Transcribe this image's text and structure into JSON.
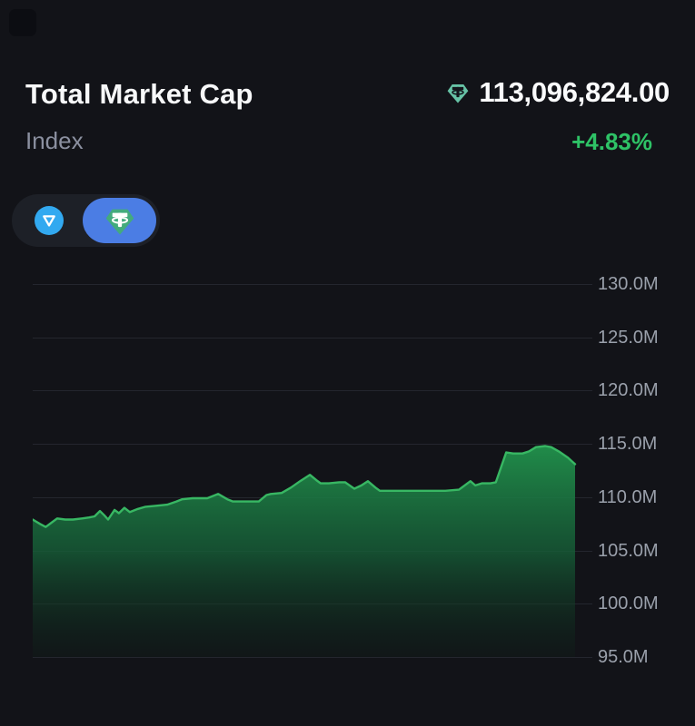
{
  "header": {
    "title": "Total Market Cap",
    "subtitle": "Index",
    "value": "113,096,824.00",
    "change": "+4.83%",
    "currency_icon": "tether-icon"
  },
  "toggle": {
    "options": [
      {
        "id": "ton",
        "icon": "ton-icon",
        "selected": false
      },
      {
        "id": "usdt",
        "icon": "tether-icon",
        "selected": true
      }
    ]
  },
  "colors": {
    "background": "#121318",
    "panel": "#1d2027",
    "selected_pill": "#4b7de4",
    "ton_blue": "#32a9f0",
    "tether_green": "#43ab7d",
    "tether_mint": "#67c3a6",
    "positive_green": "#2ec266",
    "line_green": "#38b763",
    "grid_line": "#24262e",
    "axis_label": "#9aa0ab",
    "title_text": "#f7f8f9",
    "muted_text": "#8b90a0"
  },
  "chart_data": {
    "type": "area",
    "title": "Total Market Cap Index",
    "unit": "M",
    "grid": true,
    "legend_position": "none",
    "ylim": [
      95,
      130
    ],
    "ytick_step": 5,
    "yticks": [
      "130.0M",
      "125.0M",
      "120.0M",
      "115.0M",
      "110.0M",
      "105.0M",
      "100.0M",
      "95.0M"
    ],
    "current_value_millions": 113.1,
    "series": [
      {
        "name": "Total Market Cap",
        "color": "#38b763",
        "points": [
          [
            0,
            107.9
          ],
          [
            1.3,
            107.5
          ],
          [
            2.4,
            107.2
          ],
          [
            3.7,
            107.7
          ],
          [
            4.5,
            108.0
          ],
          [
            6.0,
            107.9
          ],
          [
            7.4,
            107.9
          ],
          [
            9.1,
            108.0
          ],
          [
            10.4,
            108.1
          ],
          [
            11.4,
            108.2
          ],
          [
            12.4,
            108.7
          ],
          [
            13.2,
            108.3
          ],
          [
            13.9,
            107.9
          ],
          [
            15.1,
            108.8
          ],
          [
            15.9,
            108.5
          ],
          [
            16.9,
            109.0
          ],
          [
            17.9,
            108.6
          ],
          [
            19.4,
            108.9
          ],
          [
            20.8,
            109.1
          ],
          [
            22.8,
            109.2
          ],
          [
            24.8,
            109.3
          ],
          [
            26.5,
            109.6
          ],
          [
            27.5,
            109.8
          ],
          [
            29.5,
            109.9
          ],
          [
            32.2,
            109.9
          ],
          [
            34.2,
            110.3
          ],
          [
            35.9,
            109.8
          ],
          [
            36.9,
            109.6
          ],
          [
            39.2,
            109.6
          ],
          [
            41.7,
            109.6
          ],
          [
            43.1,
            110.2
          ],
          [
            43.9,
            110.3
          ],
          [
            45.9,
            110.4
          ],
          [
            47.6,
            110.9
          ],
          [
            49.3,
            111.5
          ],
          [
            51.1,
            112.1
          ],
          [
            52.3,
            111.6
          ],
          [
            53.1,
            111.3
          ],
          [
            54.6,
            111.3
          ],
          [
            56.5,
            111.4
          ],
          [
            57.6,
            111.4
          ],
          [
            59.3,
            110.8
          ],
          [
            60.6,
            111.1
          ],
          [
            61.8,
            111.5
          ],
          [
            63.2,
            110.9
          ],
          [
            64.0,
            110.6
          ],
          [
            66.0,
            110.6
          ],
          [
            69.4,
            110.6
          ],
          [
            72.7,
            110.6
          ],
          [
            76.1,
            110.6
          ],
          [
            78.6,
            110.7
          ],
          [
            80.7,
            111.5
          ],
          [
            81.6,
            111.1
          ],
          [
            82.8,
            111.3
          ],
          [
            84.4,
            111.3
          ],
          [
            85.4,
            111.4
          ],
          [
            87.3,
            114.2
          ],
          [
            88.6,
            114.1
          ],
          [
            90.3,
            114.1
          ],
          [
            91.5,
            114.3
          ],
          [
            92.8,
            114.7
          ],
          [
            94.5,
            114.8
          ],
          [
            95.6,
            114.7
          ],
          [
            97.0,
            114.3
          ],
          [
            98.7,
            113.7
          ],
          [
            100,
            113.1
          ]
        ]
      }
    ]
  }
}
